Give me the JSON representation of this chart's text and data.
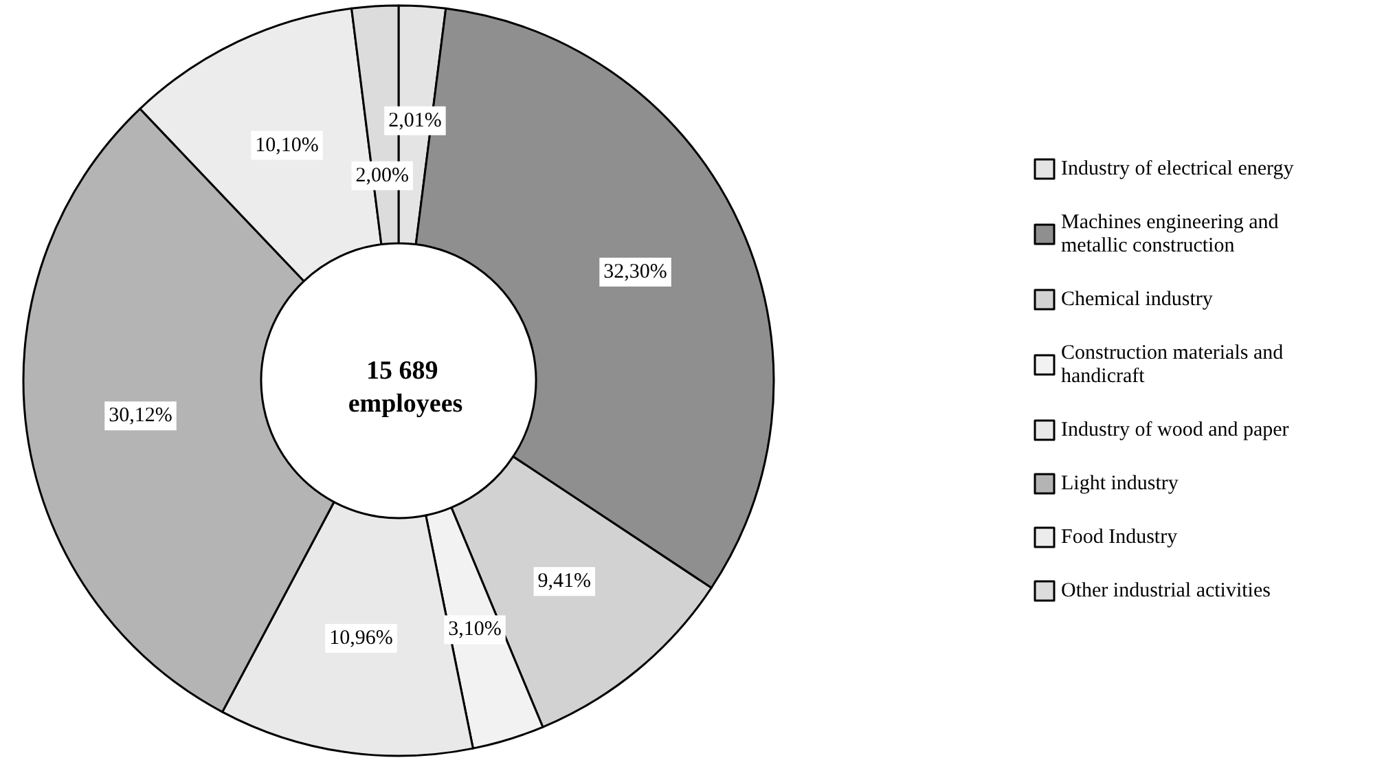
{
  "chart_data": {
    "type": "donut",
    "categories": [
      "Industry of electrical energy",
      "Machines engineering and metallic construction",
      "Chemical industry",
      "Construction materials and handicraft",
      "Industry of wood and paper",
      "Light industry",
      "Food Industry",
      "Other industrial activities"
    ],
    "values": [
      2.01,
      32.3,
      9.41,
      3.1,
      10.96,
      30.12,
      10.1,
      2.0
    ],
    "value_labels": [
      "2,01%",
      "32,30%",
      "9,41%",
      "3,10%",
      "10,96%",
      "30,12%",
      "10,10%",
      "2,00%"
    ],
    "colors": [
      "#e4e4e4",
      "#8f8f8f",
      "#d2d2d2",
      "#f2f2f2",
      "#e9e9e9",
      "#b4b4b4",
      "#ececec",
      "#dcdcdc"
    ],
    "annotations": [
      "15 689 employees"
    ],
    "legend": "right"
  }
}
